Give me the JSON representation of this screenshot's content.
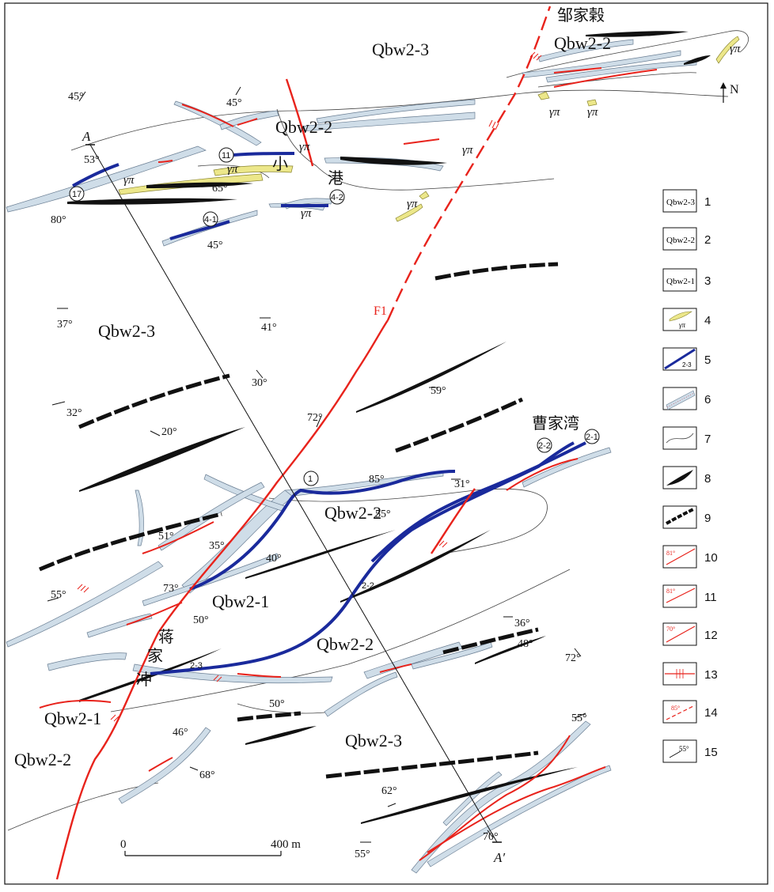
{
  "map": {
    "north_label": "N",
    "section": {
      "start": "A",
      "end": "A′"
    },
    "fault_label": "F1",
    "scale": {
      "zero": "0",
      "end": "400 m"
    },
    "places": [
      "邹家榖",
      "曹家湾",
      "小",
      "港",
      "蒋",
      "家",
      "冲"
    ],
    "units": [
      "Qbw2-3",
      "Qbw2-2",
      "Qbw2-1"
    ],
    "granite_porphyry": "γπ",
    "orebody_ids": [
      "1",
      "2-1",
      "2-2",
      "2-3",
      "4-1",
      "4-2",
      "11",
      "17"
    ],
    "dips": [
      "45°",
      "45°",
      "53°",
      "80°",
      "65°",
      "45°",
      "37°",
      "41°",
      "32°",
      "30°",
      "20°",
      "72°",
      "59°",
      "85°",
      "31°",
      "55°",
      "51°",
      "35°",
      "40°",
      "73°",
      "55°",
      "50°",
      "36°",
      "48°",
      "72°",
      "50°",
      "46°",
      "68°",
      "55°",
      "62°",
      "70°",
      "55°"
    ]
  },
  "legend": {
    "items": [
      {
        "num": "1",
        "symbol": "Qbw2-3"
      },
      {
        "num": "2",
        "symbol": "Qbw2-2"
      },
      {
        "num": "3",
        "symbol": "Qbw2-1"
      },
      {
        "num": "4",
        "symbol": "γπ"
      },
      {
        "num": "5",
        "symbol": "2-3"
      },
      {
        "num": "6",
        "symbol": ""
      },
      {
        "num": "7",
        "symbol": ""
      },
      {
        "num": "8",
        "symbol": ""
      },
      {
        "num": "9",
        "symbol": ""
      },
      {
        "num": "10",
        "symbol": "81°"
      },
      {
        "num": "11",
        "symbol": "81°"
      },
      {
        "num": "12",
        "symbol": "70°"
      },
      {
        "num": "13",
        "symbol": ""
      },
      {
        "num": "14",
        "symbol": "85°"
      },
      {
        "num": "15",
        "symbol": "55°"
      }
    ]
  },
  "colors": {
    "fault": "#e8231c",
    "orebody": "#1a2a9c",
    "porphyry": "#e8e070",
    "belt": "#cfdde8",
    "bed": "#111111"
  }
}
